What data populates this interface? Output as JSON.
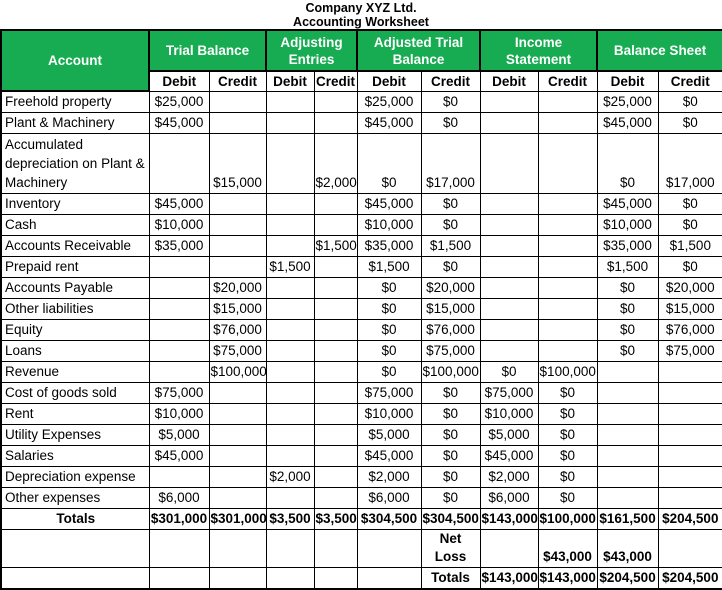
{
  "page_title": "Company XYZ Ltd.",
  "page_subtitle": "Accounting Worksheet",
  "colors": {
    "header_bg": "#17AC51",
    "header_text": "#FFFFFF",
    "border": "#000000",
    "body_text": "#000000"
  },
  "table": {
    "account_header": "Account",
    "groups": [
      {
        "label": "Trial Balance"
      },
      {
        "label": "Adjusting Entries"
      },
      {
        "label": "Adjusted Trial Balance"
      },
      {
        "label": "Income Statement"
      },
      {
        "label": "Balance Sheet"
      }
    ],
    "debit_label": "Debit",
    "credit_label": "Credit",
    "rows": [
      {
        "account": "Freehold property",
        "cells": [
          "$25,000",
          "",
          "",
          "",
          "$25,000",
          "$0",
          "",
          "",
          "$25,000",
          "$0"
        ]
      },
      {
        "account": "Plant & Machinery",
        "cells": [
          "$45,000",
          "",
          "",
          "",
          "$45,000",
          "$0",
          "",
          "",
          "$45,000",
          "$0"
        ]
      },
      {
        "account": "Accumulated depreciation on Plant & Machinery",
        "tall": true,
        "cells": [
          "",
          "$15,000",
          "",
          "$2,000",
          "$0",
          "$17,000",
          "",
          "",
          "$0",
          "$17,000"
        ]
      },
      {
        "account": "Inventory",
        "cells": [
          "$45,000",
          "",
          "",
          "",
          "$45,000",
          "$0",
          "",
          "",
          "$45,000",
          "$0"
        ]
      },
      {
        "account": "Cash",
        "cells": [
          "$10,000",
          "",
          "",
          "",
          "$10,000",
          "$0",
          "",
          "",
          "$10,000",
          "$0"
        ]
      },
      {
        "account": "Accounts Receivable",
        "cells": [
          "$35,000",
          "",
          "",
          "$1,500",
          "$35,000",
          "$1,500",
          "",
          "",
          "$35,000",
          "$1,500"
        ]
      },
      {
        "account": "Prepaid rent",
        "cells": [
          "",
          "",
          "$1,500",
          "",
          "$1,500",
          "$0",
          "",
          "",
          "$1,500",
          "$0"
        ]
      },
      {
        "account": "Accounts Payable",
        "cells": [
          "",
          "$20,000",
          "",
          "",
          "$0",
          "$20,000",
          "",
          "",
          "$0",
          "$20,000"
        ]
      },
      {
        "account": "Other liabilities",
        "cells": [
          "",
          "$15,000",
          "",
          "",
          "$0",
          "$15,000",
          "",
          "",
          "$0",
          "$15,000"
        ]
      },
      {
        "account": "Equity",
        "cells": [
          "",
          "$76,000",
          "",
          "",
          "$0",
          "$76,000",
          "",
          "",
          "$0",
          "$76,000"
        ]
      },
      {
        "account": "Loans",
        "cells": [
          "",
          "$75,000",
          "",
          "",
          "$0",
          "$75,000",
          "",
          "",
          "$0",
          "$75,000"
        ]
      },
      {
        "account": "Revenue",
        "cells": [
          "",
          "$100,000",
          "",
          "",
          "$0",
          "$100,000",
          "$0",
          "$100,000",
          "",
          ""
        ]
      },
      {
        "account": "Cost of goods sold",
        "cells": [
          "$75,000",
          "",
          "",
          "",
          "$75,000",
          "$0",
          "$75,000",
          "$0",
          "",
          ""
        ]
      },
      {
        "account": "Rent",
        "cells": [
          "$10,000",
          "",
          "",
          "",
          "$10,000",
          "$0",
          "$10,000",
          "$0",
          "",
          ""
        ]
      },
      {
        "account": "Utility Expenses",
        "cells": [
          "$5,000",
          "",
          "",
          "",
          "$5,000",
          "$0",
          "$5,000",
          "$0",
          "",
          ""
        ]
      },
      {
        "account": "Salaries",
        "cells": [
          "$45,000",
          "",
          "",
          "",
          "$45,000",
          "$0",
          "$45,000",
          "$0",
          "",
          ""
        ]
      },
      {
        "account": "Depreciation expense",
        "cells": [
          "",
          "",
          "$2,000",
          "",
          "$2,000",
          "$0",
          "$2,000",
          "$0",
          "",
          ""
        ]
      },
      {
        "account": "Other expenses",
        "cells": [
          "$6,000",
          "",
          "",
          "",
          "$6,000",
          "$0",
          "$6,000",
          "$0",
          "",
          ""
        ]
      },
      {
        "account": "Totals",
        "bold": true,
        "center_account": true,
        "short": true,
        "cells": [
          "$301,000",
          "$301,000",
          "$3,500",
          "$3,500",
          "$304,500",
          "$304,500",
          "$143,000",
          "$100,000",
          "$161,500",
          "$204,500"
        ]
      },
      {
        "account": "",
        "bold": true,
        "short": true,
        "cells": [
          "",
          "",
          "",
          "",
          "",
          "Net Loss",
          "",
          "$43,000",
          "$43,000",
          ""
        ]
      },
      {
        "account": "",
        "bold": true,
        "short": true,
        "cells": [
          "",
          "",
          "",
          "",
          "",
          "Totals",
          "$143,000",
          "$143,000",
          "$204,500",
          "$204,500"
        ]
      }
    ]
  }
}
